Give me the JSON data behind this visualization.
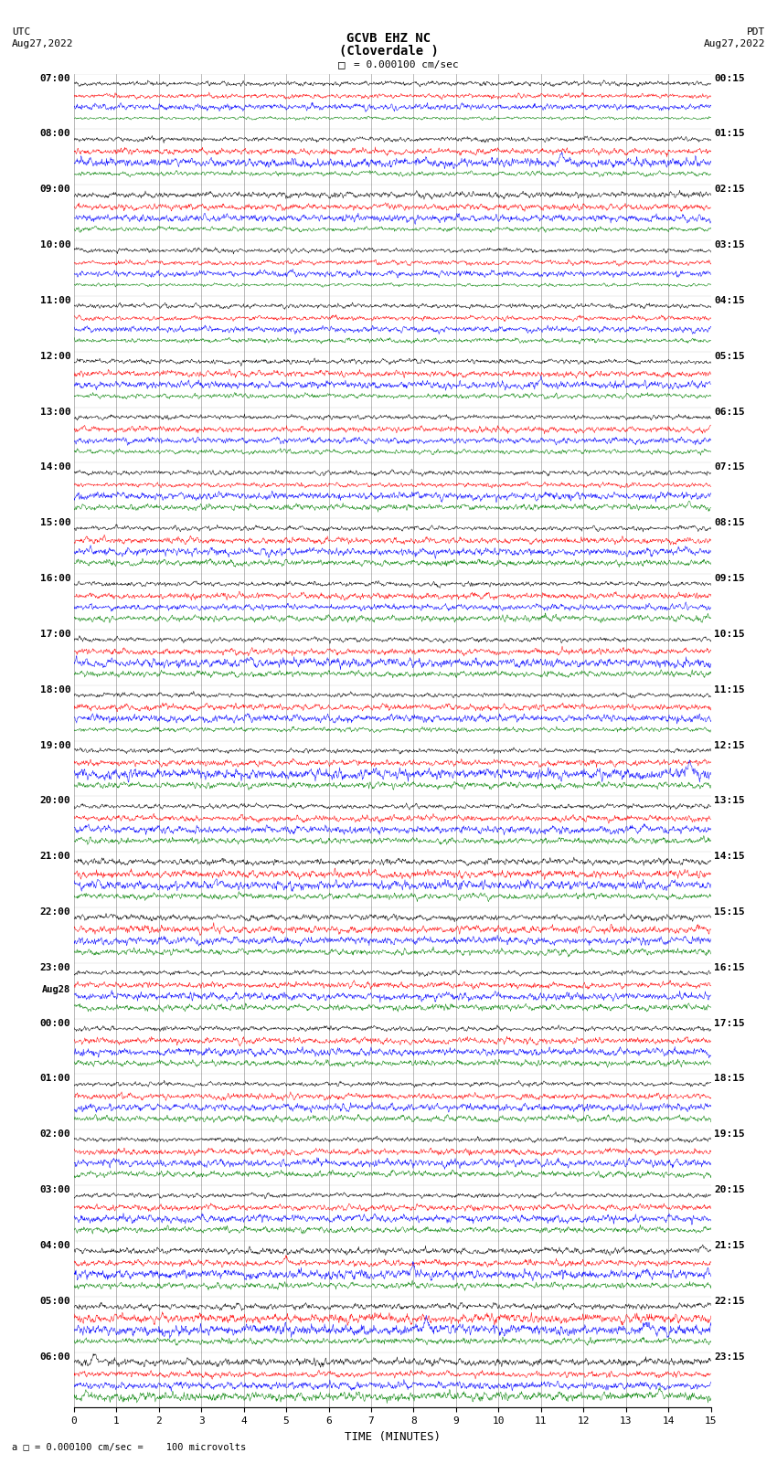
{
  "title_line1": "GCVB EHZ NC",
  "title_line2": "(Cloverdale )",
  "scale_text": "= 0.000100 cm/sec",
  "xlabel": "TIME (MINUTES)",
  "footer_text": "a □ = 0.000100 cm/sec =    100 microvolts",
  "x_min": 0,
  "x_max": 15,
  "x_ticks": [
    0,
    1,
    2,
    3,
    4,
    5,
    6,
    7,
    8,
    9,
    10,
    11,
    12,
    13,
    14,
    15
  ],
  "utc_times": [
    "07:00",
    "08:00",
    "09:00",
    "10:00",
    "11:00",
    "12:00",
    "13:00",
    "14:00",
    "15:00",
    "16:00",
    "17:00",
    "18:00",
    "19:00",
    "20:00",
    "21:00",
    "22:00",
    "23:00",
    "Aug28\n00:00",
    "01:00",
    "02:00",
    "03:00",
    "04:00",
    "05:00",
    "06:00"
  ],
  "pdt_times": [
    "00:15",
    "01:15",
    "02:15",
    "03:15",
    "04:15",
    "05:15",
    "06:15",
    "07:15",
    "08:15",
    "09:15",
    "10:15",
    "11:15",
    "12:15",
    "13:15",
    "14:15",
    "15:15",
    "16:15",
    "17:15",
    "18:15",
    "19:15",
    "20:15",
    "21:15",
    "22:15",
    "23:15"
  ],
  "n_rows": 24,
  "traces_per_row": 4,
  "trace_colors": [
    "black",
    "red",
    "blue",
    "green"
  ],
  "bg_color": "white",
  "grid_color": "#808080",
  "fig_width": 8.5,
  "fig_height": 16.13,
  "dpi": 100
}
